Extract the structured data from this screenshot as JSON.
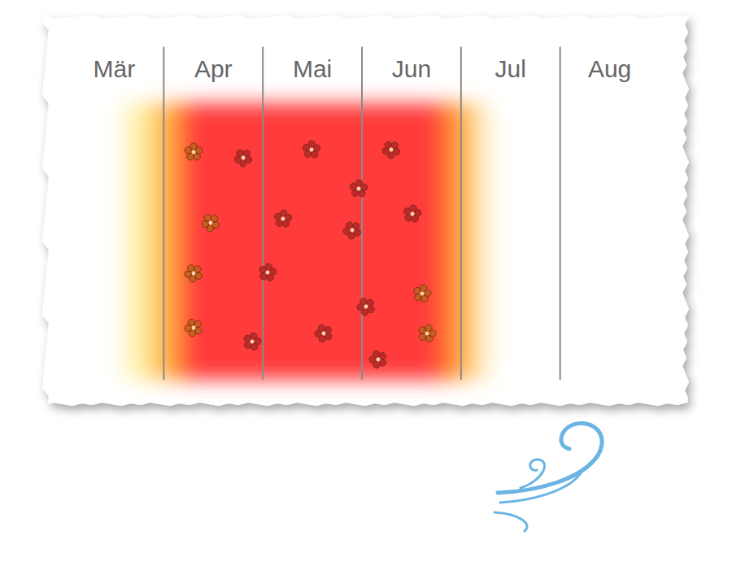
{
  "chart_data": {
    "type": "season",
    "categories": [
      "Mär",
      "Apr",
      "Mai",
      "Jun",
      "Jul",
      "Aug"
    ],
    "season": {
      "start": 0.5,
      "peak_start": 1.3,
      "peak_end": 3.7,
      "end": 4.4
    },
    "colors": [
      "#fff0a0",
      "#ffa030",
      "#ff3b3b"
    ]
  }
}
